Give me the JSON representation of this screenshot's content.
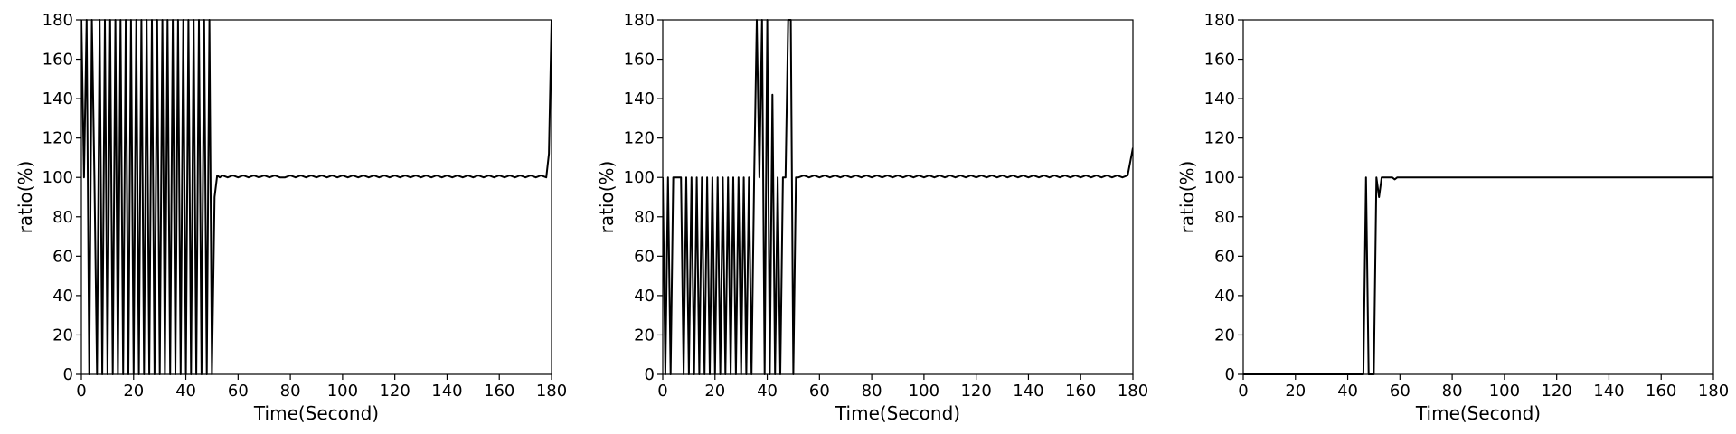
{
  "chart_data": [
    {
      "type": "line",
      "xlabel": "Time(Second)",
      "ylabel": "ratio(%)",
      "xlim": [
        0,
        180
      ],
      "ylim": [
        0,
        180
      ],
      "xticks": [
        "0",
        "20",
        "40",
        "60",
        "80",
        "100",
        "120",
        "140",
        "160",
        "180"
      ],
      "yticks": [
        "0",
        "20",
        "40",
        "60",
        "80",
        "100",
        "120",
        "140",
        "160",
        "180"
      ],
      "grid": false,
      "line_color": "#000000",
      "series": [
        {
          "x": [
            0,
            1,
            2,
            3,
            4,
            5,
            6,
            7,
            8,
            9,
            10,
            11,
            12,
            13,
            14,
            15,
            16,
            17,
            18,
            19,
            20,
            21,
            22,
            23,
            24,
            25,
            26,
            27,
            28,
            29,
            30,
            31,
            32,
            33,
            34,
            35,
            36,
            37,
            38,
            39,
            40,
            41,
            42,
            43,
            44,
            45,
            46,
            47,
            48,
            49,
            50,
            51,
            52,
            53,
            54,
            56,
            58,
            60,
            62,
            64,
            66,
            68,
            70,
            72,
            74,
            76,
            78,
            80,
            82,
            84,
            86,
            88,
            90,
            92,
            94,
            96,
            98,
            100,
            102,
            104,
            106,
            108,
            110,
            112,
            114,
            116,
            118,
            120,
            122,
            124,
            126,
            128,
            130,
            132,
            134,
            136,
            138,
            140,
            142,
            144,
            146,
            148,
            150,
            152,
            154,
            156,
            158,
            160,
            162,
            164,
            166,
            168,
            170,
            172,
            174,
            176,
            178,
            179,
            180
          ],
          "y": [
            180,
            100,
            180,
            0,
            180,
            100,
            0,
            180,
            0,
            180,
            0,
            180,
            0,
            180,
            0,
            180,
            0,
            180,
            0,
            180,
            0,
            180,
            0,
            180,
            0,
            180,
            0,
            180,
            0,
            180,
            0,
            180,
            0,
            180,
            0,
            180,
            0,
            180,
            0,
            180,
            0,
            180,
            0,
            180,
            0,
            180,
            0,
            180,
            0,
            180,
            0,
            90,
            101,
            100,
            101,
            100,
            101,
            100,
            101,
            100,
            101,
            100,
            101,
            100,
            101,
            100,
            100,
            101,
            100,
            101,
            100,
            101,
            100,
            101,
            100,
            101,
            100,
            101,
            100,
            101,
            100,
            101,
            100,
            101,
            100,
            101,
            100,
            101,
            100,
            101,
            100,
            101,
            100,
            101,
            100,
            101,
            100,
            101,
            100,
            101,
            100,
            101,
            100,
            101,
            100,
            101,
            100,
            101,
            100,
            101,
            100,
            101,
            100,
            101,
            100,
            101,
            100,
            112,
            180
          ]
        }
      ]
    },
    {
      "type": "line",
      "xlabel": "Time(Second)",
      "ylabel": "ratio(%)",
      "xlim": [
        0,
        180
      ],
      "ylim": [
        0,
        180
      ],
      "xticks": [
        "0",
        "20",
        "40",
        "60",
        "80",
        "100",
        "120",
        "140",
        "160",
        "180"
      ],
      "yticks": [
        "0",
        "20",
        "40",
        "60",
        "80",
        "100",
        "120",
        "140",
        "160",
        "180"
      ],
      "grid": false,
      "line_color": "#000000",
      "series": [
        {
          "x": [
            0,
            1,
            2,
            3,
            4,
            6,
            7,
            8,
            9,
            10,
            11,
            12,
            13,
            14,
            15,
            16,
            17,
            18,
            19,
            20,
            21,
            22,
            23,
            24,
            25,
            26,
            27,
            28,
            29,
            30,
            31,
            32,
            33,
            34,
            35,
            36,
            37,
            38,
            39,
            40,
            41,
            42,
            43,
            44,
            45,
            46,
            47,
            48,
            49,
            50,
            51,
            52,
            54,
            56,
            58,
            60,
            62,
            64,
            66,
            68,
            70,
            72,
            74,
            76,
            78,
            80,
            82,
            84,
            86,
            88,
            90,
            92,
            94,
            96,
            98,
            100,
            102,
            104,
            106,
            108,
            110,
            112,
            114,
            116,
            118,
            120,
            122,
            124,
            126,
            128,
            130,
            132,
            134,
            136,
            138,
            140,
            142,
            144,
            146,
            148,
            150,
            152,
            154,
            156,
            158,
            160,
            162,
            164,
            166,
            168,
            170,
            172,
            174,
            176,
            178,
            180
          ],
          "y": [
            100,
            0,
            100,
            0,
            100,
            100,
            100,
            0,
            100,
            0,
            100,
            0,
            100,
            0,
            100,
            0,
            100,
            0,
            100,
            0,
            100,
            0,
            100,
            0,
            100,
            0,
            100,
            0,
            100,
            0,
            100,
            0,
            100,
            0,
            100,
            180,
            100,
            180,
            0,
            180,
            0,
            142,
            0,
            100,
            0,
            100,
            100,
            180,
            180,
            0,
            100,
            100,
            101,
            100,
            101,
            100,
            101,
            100,
            101,
            100,
            101,
            100,
            101,
            100,
            101,
            100,
            101,
            100,
            101,
            100,
            101,
            100,
            101,
            100,
            101,
            100,
            101,
            100,
            101,
            100,
            101,
            100,
            101,
            100,
            101,
            100,
            101,
            100,
            101,
            100,
            101,
            100,
            101,
            100,
            101,
            100,
            101,
            100,
            101,
            100,
            101,
            100,
            101,
            100,
            101,
            100,
            101,
            100,
            101,
            100,
            101,
            100,
            101,
            100,
            101,
            115
          ]
        }
      ]
    },
    {
      "type": "line",
      "xlabel": "Time(Second)",
      "ylabel": "ratio(%)",
      "xlim": [
        0,
        180
      ],
      "ylim": [
        0,
        180
      ],
      "xticks": [
        "0",
        "20",
        "40",
        "60",
        "80",
        "100",
        "120",
        "140",
        "160",
        "180"
      ],
      "yticks": [
        "0",
        "20",
        "40",
        "60",
        "80",
        "100",
        "120",
        "140",
        "160",
        "180"
      ],
      "grid": false,
      "line_color": "#000000",
      "series": [
        {
          "x": [
            0,
            10,
            20,
            30,
            40,
            46,
            47,
            48,
            49,
            50,
            51,
            52,
            53,
            54,
            55,
            56,
            57,
            58,
            59,
            60,
            70,
            80,
            90,
            100,
            110,
            120,
            130,
            140,
            150,
            160,
            170,
            180
          ],
          "y": [
            0,
            0,
            0,
            0,
            0,
            0,
            100,
            0,
            0,
            0,
            100,
            90,
            100,
            100,
            100,
            100,
            100,
            99,
            100,
            100,
            100,
            100,
            100,
            100,
            100,
            100,
            100,
            100,
            100,
            100,
            100,
            100
          ]
        }
      ]
    }
  ]
}
